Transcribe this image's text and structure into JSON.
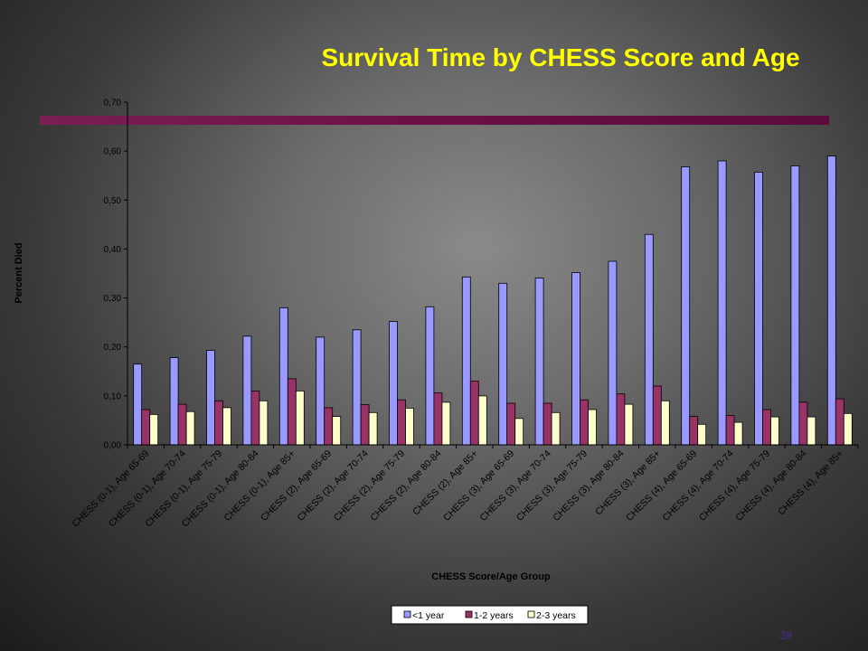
{
  "slide": {
    "title": "Survival Time by CHESS Score and Age",
    "page_number": "38"
  },
  "colors": {
    "title": "#ffff00",
    "rule": "#6b1046",
    "series": [
      "#9999ff",
      "#993366",
      "#ffffcc"
    ]
  },
  "chart_data": {
    "type": "bar",
    "xlabel": "CHESS Score/Age Group",
    "ylabel": "Percent Died",
    "ylim": [
      0,
      0.7
    ],
    "yticks": [
      "0,00",
      "0,10",
      "0,20",
      "0,30",
      "0,40",
      "0,50",
      "0,60",
      "0,70"
    ],
    "legend_position": "bottom",
    "grid": false,
    "categories": [
      "CHESS (0-1), Age 65-69",
      "CHESS (0-1), Age 70-74",
      "CHESS (0-1), Age 75-79",
      "CHESS (0-1), Age 80-84",
      "CHESS (0-1), Age 85+",
      "CHESS (2), Age 65-69",
      "CHESS (2), Age 70-74",
      "CHESS (2), Age 75-79",
      "CHESS (2), Age 80-84",
      "CHESS (2), Age 85+",
      "CHESS (3), Age 65-69",
      "CHESS (3), Age 70-74",
      "CHESS (3), Age 75-79",
      "CHESS (3), Age 80-84",
      "CHESS (3), Age 85+",
      "CHESS (4), Age 65-69",
      "CHESS (4), Age 70-74",
      "CHESS (4), Age 75-79",
      "CHESS (4), Age 80-84",
      "CHESS (4), Age 85+"
    ],
    "series": [
      {
        "name": "<1 year",
        "values": [
          0.165,
          0.178,
          0.193,
          0.222,
          0.28,
          0.22,
          0.235,
          0.252,
          0.282,
          0.343,
          0.33,
          0.341,
          0.352,
          0.375,
          0.43,
          0.568,
          0.58,
          0.557,
          0.57,
          0.59
        ]
      },
      {
        "name": "1-2 years",
        "values": [
          0.072,
          0.083,
          0.09,
          0.11,
          0.135,
          0.076,
          0.082,
          0.092,
          0.106,
          0.13,
          0.085,
          0.085,
          0.092,
          0.104,
          0.12,
          0.058,
          0.06,
          0.072,
          0.087,
          0.094
        ]
      },
      {
        "name": "2-3 years",
        "values": [
          0.062,
          0.068,
          0.076,
          0.09,
          0.11,
          0.058,
          0.066,
          0.075,
          0.087,
          0.1,
          0.054,
          0.066,
          0.072,
          0.083,
          0.09,
          0.042,
          0.046,
          0.057,
          0.057,
          0.064
        ]
      }
    ]
  }
}
